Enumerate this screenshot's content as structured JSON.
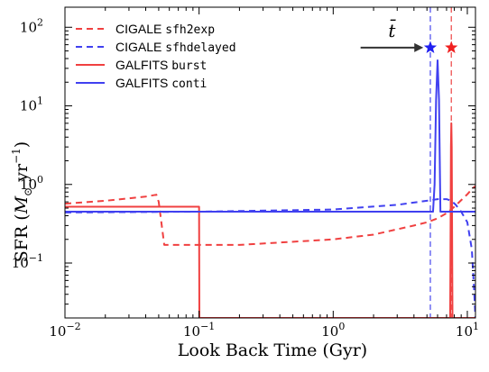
{
  "chart_data": {
    "type": "line",
    "xlabel": "Look Back Time (Gyr)",
    "ylabel": "SFR (M⊙ yr−1)",
    "ylabel_parts": {
      "prefix": "SFR (",
      "sym": "M",
      "sub": "⊙",
      "unit": " yr",
      "sup": "−1",
      "suffix": ")"
    },
    "xscale": "log",
    "yscale": "log",
    "xlim": [
      0.01,
      11.5
    ],
    "ylim": [
      0.02,
      180
    ],
    "xticks": [
      {
        "value": 0.01,
        "base": "10",
        "exp": "−2"
      },
      {
        "value": 0.1,
        "base": "10",
        "exp": "−1"
      },
      {
        "value": 1,
        "base": "10",
        "exp": "0"
      },
      {
        "value": 10,
        "base": "10",
        "exp": "1"
      }
    ],
    "yticks": [
      {
        "value": 0.1,
        "base": "10",
        "exp": "−1"
      },
      {
        "value": 1,
        "base": "10",
        "exp": "0"
      },
      {
        "value": 10,
        "base": "10",
        "exp": "1"
      },
      {
        "value": 100,
        "base": "10",
        "exp": "2"
      }
    ],
    "legend": {
      "position": "top-left",
      "entries": [
        {
          "text": "CIGALE ",
          "code": "sfh2exp",
          "color": "#f04040",
          "dash": true
        },
        {
          "text": "CIGALE ",
          "code": "sfhdelayed",
          "color": "#4040f0",
          "dash": true
        },
        {
          "text": "GALFITS ",
          "code": "burst",
          "color": "#f04040",
          "dash": false
        },
        {
          "text": "GALFITS ",
          "code": "conti",
          "color": "#4040f0",
          "dash": false
        }
      ]
    },
    "annotation": {
      "label": "t̄",
      "arrow_from_x": 1.6,
      "arrow_to_x": 4.7,
      "y": 55
    },
    "markers": [
      {
        "x": 5.3,
        "y": 55,
        "color": "#2020f0"
      },
      {
        "x": 7.6,
        "y": 55,
        "color": "#f02020"
      }
    ],
    "vlines": [
      {
        "x": 5.3,
        "color": "#6060f0"
      },
      {
        "x": 7.6,
        "color": "#f06060"
      }
    ],
    "series": [
      {
        "name": "CIGALE sfh2exp",
        "color": "#f04040",
        "style": "dashed",
        "x": [
          0.01,
          0.02,
          0.04,
          0.048,
          0.05,
          0.055,
          0.2,
          1,
          2,
          4,
          5,
          6,
          7,
          8,
          9,
          10,
          11,
          11.5
        ],
        "y": [
          0.57,
          0.62,
          0.7,
          0.74,
          0.6,
          0.17,
          0.17,
          0.2,
          0.23,
          0.3,
          0.33,
          0.37,
          0.43,
          0.52,
          0.63,
          0.75,
          0.9,
          0.95
        ]
      },
      {
        "name": "CIGALE sfhdelayed",
        "color": "#4040f0",
        "style": "dashed",
        "x": [
          0.01,
          0.1,
          1,
          3,
          5,
          6,
          7,
          7.6,
          8.2,
          9,
          10,
          10.8,
          11.2,
          11.5
        ],
        "y": [
          0.44,
          0.45,
          0.48,
          0.55,
          0.62,
          0.65,
          0.65,
          0.62,
          0.55,
          0.45,
          0.33,
          0.15,
          0.05,
          0.02
        ]
      },
      {
        "name": "GALFITS burst",
        "color": "#f04040",
        "style": "solid",
        "x": [
          0.01,
          0.0995,
          0.1,
          0.1005,
          7.3,
          7.45,
          7.55,
          7.6,
          7.65,
          7.75,
          7.9,
          11.5
        ],
        "y": [
          0.52,
          0.52,
          0.52,
          0.02,
          0.02,
          0.02,
          3,
          6,
          3,
          0.02,
          0.02,
          0.02
        ]
      },
      {
        "name": "GALFITS conti",
        "color": "#4040f0",
        "style": "solid",
        "x": [
          0.01,
          5.55,
          5.7,
          5.85,
          6.0,
          6.15,
          6.3,
          11.5
        ],
        "y": [
          0.45,
          0.45,
          1.0,
          12,
          38,
          12,
          0.45,
          0.45
        ]
      }
    ]
  }
}
